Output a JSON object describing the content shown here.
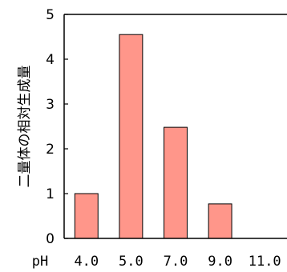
{
  "chart_data": {
    "type": "bar",
    "categories": [
      "4.0",
      "5.0",
      "7.0",
      "9.0",
      "11.0"
    ],
    "values": [
      1.0,
      4.55,
      2.48,
      0.77,
      0
    ],
    "xlabel": "pH",
    "ylabel": "二量体の相対生成量",
    "ylim": [
      0,
      5
    ],
    "yticks": [
      "0",
      "1",
      "2",
      "3",
      "4",
      "5"
    ],
    "grid": false,
    "legend": "none",
    "bar_color": "#FF968A",
    "bar_edge_color": "#000000"
  }
}
